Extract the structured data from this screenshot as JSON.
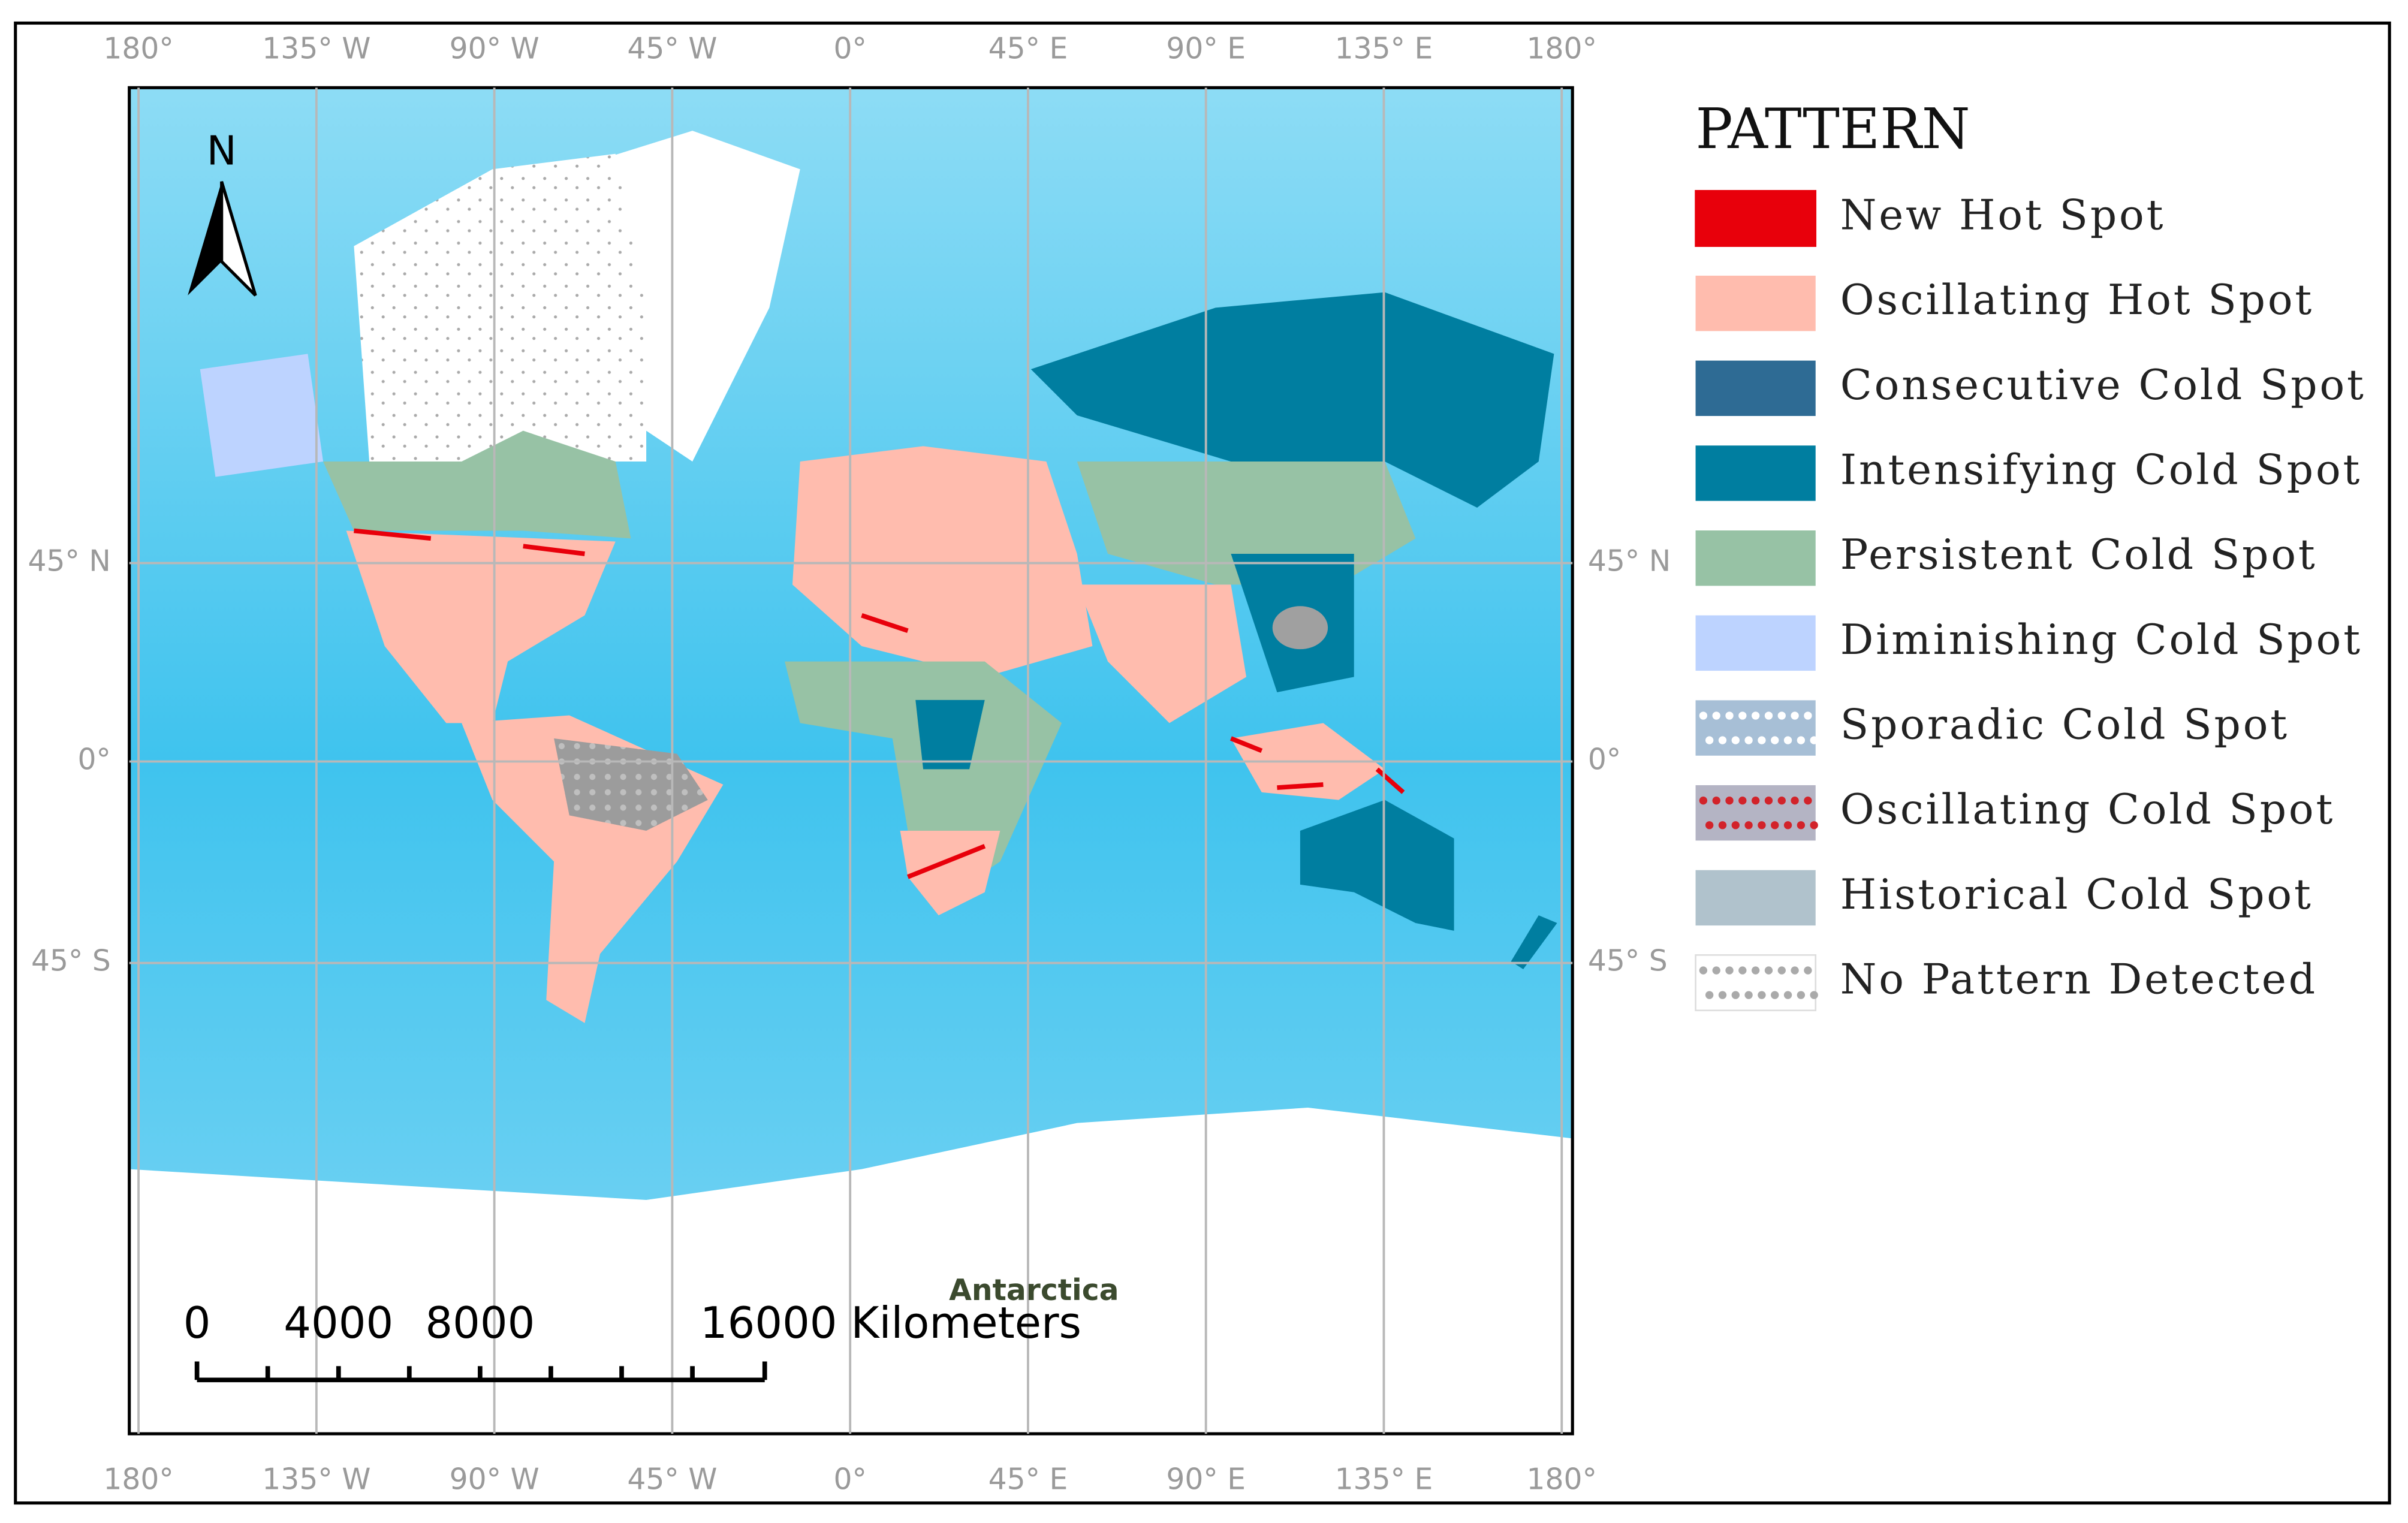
{
  "map": {
    "graticule": {
      "longitudes": [
        "180°",
        "135° W",
        "90° W",
        "45° W",
        "0°",
        "45° E",
        "90° E",
        "135° E",
        "180°"
      ],
      "latitudes": [
        "45° N",
        "0°",
        "45° S"
      ]
    },
    "north_arrow": "N",
    "place_labels": [
      "Antarctica"
    ],
    "scale_bar": {
      "labels": [
        "0",
        "4000",
        "8000",
        "16000 Kilometers"
      ]
    },
    "legend": {
      "title": "PATTERN",
      "items": [
        {
          "name": "New Hot Spot",
          "color": "#e8000b",
          "border": "#e8000b"
        },
        {
          "name": "Oscillating Hot Spot",
          "color": "#ffbcae"
        },
        {
          "name": "Consecutive Cold Spot",
          "color": "#2e6b94"
        },
        {
          "name": "Intensifying Cold Spot",
          "color": "#007ea0"
        },
        {
          "name": "Persistent Cold Spot",
          "color": "#97c2a5"
        },
        {
          "name": "Diminishing Cold Spot",
          "color": "#bdd3ff"
        },
        {
          "name": "Sporadic Cold Spot",
          "color": "#a7bfd6",
          "dots": "#ffffff"
        },
        {
          "name": "Oscillating Cold Spot",
          "color": "#b4b4c4",
          "dots": "#d2232a"
        },
        {
          "name": "Historical Cold Spot",
          "color": "#b0c2cc"
        },
        {
          "name": "No Pattern Detected",
          "color": "#ffffff",
          "dots": "#aaaaaa",
          "border": "#dddddd"
        }
      ]
    }
  }
}
